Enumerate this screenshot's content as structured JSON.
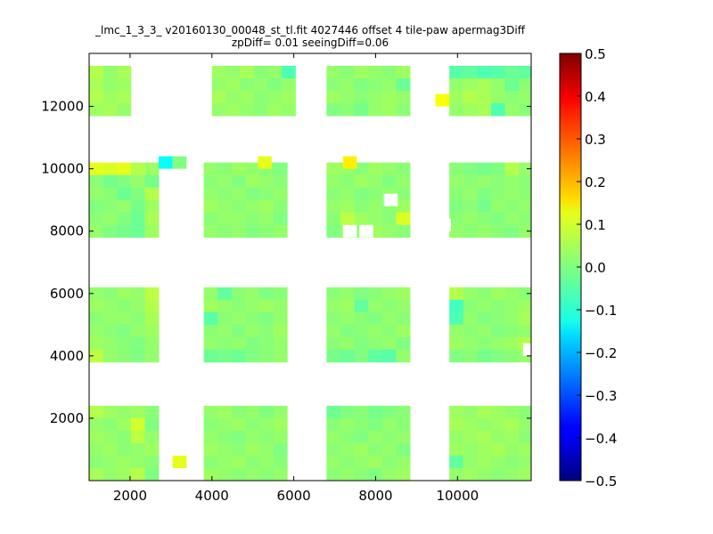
{
  "chart_data": {
    "type": "heatmap",
    "title": "_lmc_1_3_3_ v20160130_00048_st_tl.fit 4027446 offset 4 tile-paw apermag3Diff",
    "subtitle": "zpDiff= 0.01 seeingDiff=0.06",
    "xlabel": "",
    "ylabel": "",
    "xlim": [
      1000,
      11800
    ],
    "ylim": [
      0,
      13700
    ],
    "x_ticks": [
      {
        "value": 2000,
        "label": "2000"
      },
      {
        "value": 4000,
        "label": "4000"
      },
      {
        "value": 6000,
        "label": "6000"
      },
      {
        "value": 8000,
        "label": "8000"
      },
      {
        "value": 10000,
        "label": "10000"
      }
    ],
    "y_ticks": [
      {
        "value": 2000,
        "label": "2000"
      },
      {
        "value": 4000,
        "label": "4000"
      },
      {
        "value": 6000,
        "label": "6000"
      },
      {
        "value": 8000,
        "label": "8000"
      },
      {
        "value": 10000,
        "label": "10000"
      },
      {
        "value": 12000,
        "label": "12000"
      }
    ],
    "colorbar": {
      "colormap": "jet",
      "range": [
        -0.5,
        0.5
      ],
      "ticks": [
        "0.5",
        "0.4",
        "0.3",
        "0.2",
        "0.1",
        "0.0",
        "−0.1",
        "−0.2",
        "−0.3",
        "−0.4",
        "−0.5"
      ]
    },
    "cell_size": [
      340,
      400
    ],
    "detectors": [
      {
        "x0": 1000,
        "y0": 11700,
        "cols": 3,
        "rows": 4,
        "values": [
          [
            0.05,
            0.02,
            0.04
          ],
          [
            0.04,
            0.02,
            0.03
          ],
          [
            0.05,
            0.03,
            0.04
          ],
          [
            0.03,
            0.04,
            0.02
          ]
        ]
      },
      {
        "x0": 4000,
        "y0": 11700,
        "cols": 6,
        "rows": 4,
        "values": [
          [
            0.03,
            0.02,
            0.04,
            0.01,
            0.02,
            -0.05
          ],
          [
            0.02,
            0.03,
            0.01,
            0.02,
            0.0,
            0.02
          ],
          [
            0.04,
            0.02,
            0.03,
            0.01,
            0.02,
            0.03
          ],
          [
            0.02,
            0.03,
            0.02,
            0.01,
            0.03,
            0.02
          ]
        ]
      },
      {
        "x0": 6800,
        "y0": 11700,
        "cols": 6,
        "rows": 4,
        "values": [
          [
            0.02,
            0.01,
            0.03,
            0.02,
            0.01,
            0.03
          ],
          [
            0.01,
            0.02,
            0.0,
            0.01,
            0.02,
            -0.02
          ],
          [
            0.03,
            0.02,
            0.01,
            0.02,
            0.03,
            0.02
          ],
          [
            0.0,
            0.01,
            -0.01,
            0.02,
            0.03,
            0.01
          ]
        ]
      },
      {
        "x0": 9800,
        "y0": 11700,
        "cols": 6,
        "rows": 4,
        "values": [
          [
            -0.04,
            -0.03,
            -0.05,
            -0.04,
            -0.02,
            -0.03
          ],
          [
            0.02,
            0.03,
            0.04,
            0.02,
            -0.02,
            0.01
          ],
          [
            0.03,
            0.05,
            0.04,
            0.02,
            0.01,
            0.02
          ],
          [
            0.02,
            0.03,
            0.04,
            -0.05,
            0.02,
            0.01
          ]
        ]
      },
      {
        "x0": 1000,
        "y0": 7800,
        "cols": 5,
        "rows": 6,
        "values": [
          [
            0.1,
            0.09,
            0.1,
            0.05,
            0.03
          ],
          [
            0.01,
            -0.01,
            0.0,
            0.02,
            -0.01
          ],
          [
            0.02,
            0.01,
            -0.02,
            0.0,
            0.05
          ],
          [
            0.0,
            0.01,
            0.02,
            -0.01,
            0.03
          ],
          [
            0.01,
            0.02,
            0.0,
            -0.02,
            0.04
          ],
          [
            0.02,
            0.0,
            -0.01,
            -0.02,
            0.03
          ]
        ]
      },
      {
        "x0": 3800,
        "y0": 7800,
        "cols": 6,
        "rows": 6,
        "values": [
          [
            0.02,
            0.01,
            0.03,
            0.02,
            0.01,
            0.0
          ],
          [
            0.01,
            0.02,
            0.0,
            0.03,
            0.02,
            0.01
          ],
          [
            0.02,
            0.01,
            0.02,
            0.0,
            0.01,
            0.02
          ],
          [
            0.03,
            0.02,
            0.01,
            0.02,
            0.03,
            0.01
          ],
          [
            0.01,
            0.02,
            0.02,
            0.01,
            0.02,
            0.0
          ],
          [
            0.02,
            0.01,
            0.02,
            0.0,
            0.01,
            0.02
          ]
        ]
      },
      {
        "x0": 6800,
        "y0": 7800,
        "cols": 6,
        "rows": 6,
        "values": [
          [
            0.03,
            0.02,
            0.01,
            0.03,
            0.02,
            0.01
          ],
          [
            0.02,
            0.01,
            0.03,
            0.02,
            0.0,
            0.02
          ],
          [
            0.01,
            0.02,
            0.0,
            0.01,
            0.02,
            0.01
          ],
          [
            0.02,
            0.03,
            0.01,
            0.02,
            0.01,
            0.03
          ],
          [
            0.01,
            0.06,
            0.03,
            0.02,
            0.01,
            0.09
          ],
          [
            0.0,
            0.02,
            0.01,
            0.03,
            0.02,
            0.01
          ]
        ]
      },
      {
        "x0": 9800,
        "y0": 7800,
        "cols": 6,
        "rows": 6,
        "values": [
          [
            0.01,
            0.0,
            -0.01,
            0.0,
            0.05,
            0.02
          ],
          [
            0.02,
            0.01,
            0.02,
            0.01,
            0.02,
            0.01
          ],
          [
            0.01,
            0.02,
            0.0,
            0.01,
            0.02,
            0.01
          ],
          [
            0.0,
            0.01,
            -0.01,
            0.02,
            0.01,
            0.02
          ],
          [
            0.01,
            0.02,
            0.01,
            0.0,
            0.02,
            0.01
          ],
          [
            0.02,
            0.01,
            0.02,
            0.01,
            0.0,
            0.02
          ]
        ]
      },
      {
        "x0": 1000,
        "y0": 3800,
        "cols": 5,
        "rows": 6,
        "values": [
          [
            0.02,
            0.01,
            0.03,
            0.02,
            0.06
          ],
          [
            0.03,
            0.02,
            0.01,
            0.02,
            0.05
          ],
          [
            0.01,
            0.02,
            0.02,
            0.01,
            0.04
          ],
          [
            0.02,
            0.01,
            0.0,
            0.02,
            0.03
          ],
          [
            0.03,
            0.02,
            0.01,
            0.0,
            0.02
          ],
          [
            0.06,
            0.02,
            0.01,
            0.0,
            0.02
          ]
        ]
      },
      {
        "x0": 3800,
        "y0": 3800,
        "cols": 6,
        "rows": 6,
        "values": [
          [
            0.02,
            -0.03,
            0.01,
            0.02,
            0.0,
            0.01
          ],
          [
            0.03,
            0.02,
            0.01,
            0.02,
            0.03,
            0.02
          ],
          [
            -0.04,
            0.01,
            0.02,
            0.01,
            0.0,
            0.02
          ],
          [
            0.01,
            0.02,
            0.0,
            0.02,
            0.01,
            0.03
          ],
          [
            0.02,
            0.01,
            0.02,
            0.0,
            0.01,
            0.02
          ],
          [
            -0.02,
            -0.01,
            -0.02,
            0.0,
            0.01,
            0.02
          ]
        ]
      },
      {
        "x0": 6800,
        "y0": 3800,
        "cols": 6,
        "rows": 6,
        "values": [
          [
            0.01,
            0.02,
            0.0,
            0.01,
            0.02,
            0.03
          ],
          [
            0.02,
            0.03,
            -0.03,
            0.02,
            0.01,
            0.02
          ],
          [
            0.01,
            0.02,
            0.01,
            0.0,
            0.02,
            0.01
          ],
          [
            0.02,
            0.0,
            0.01,
            0.02,
            0.01,
            0.03
          ],
          [
            0.01,
            0.02,
            0.0,
            0.01,
            0.02,
            0.0
          ],
          [
            -0.01,
            -0.02,
            0.0,
            -0.03,
            -0.04,
            0.02
          ]
        ]
      },
      {
        "x0": 9800,
        "y0": 3800,
        "cols": 6,
        "rows": 6,
        "values": [
          [
            0.05,
            0.02,
            0.01,
            0.03,
            0.02,
            0.01
          ],
          [
            -0.06,
            0.01,
            0.02,
            0.01,
            0.02,
            0.03
          ],
          [
            -0.05,
            0.02,
            0.0,
            0.01,
            0.02,
            0.04
          ],
          [
            0.02,
            0.01,
            0.02,
            0.0,
            0.01,
            0.02
          ],
          [
            0.03,
            0.02,
            0.01,
            0.02,
            0.03,
            0.05
          ],
          [
            0.0,
            0.01,
            -0.01,
            0.0,
            0.01,
            0.02
          ]
        ]
      },
      {
        "x0": 1000,
        "y0": 0,
        "cols": 5,
        "rows": 6,
        "values": [
          [
            0.05,
            0.03,
            0.02,
            0.03,
            0.01
          ],
          [
            0.02,
            0.01,
            0.03,
            0.08,
            0.0
          ],
          [
            0.03,
            0.02,
            0.01,
            0.06,
            0.02
          ],
          [
            0.02,
            0.03,
            0.01,
            0.02,
            0.03
          ],
          [
            0.01,
            0.02,
            0.03,
            0.02,
            0.01
          ],
          [
            0.04,
            0.02,
            0.03,
            0.05,
            0.0
          ]
        ]
      },
      {
        "x0": 3800,
        "y0": 0,
        "cols": 6,
        "rows": 6,
        "values": [
          [
            0.02,
            0.03,
            0.01,
            0.02,
            0.0,
            0.02
          ],
          [
            0.01,
            0.02,
            0.03,
            0.01,
            0.02,
            0.03
          ],
          [
            0.02,
            0.01,
            0.0,
            0.02,
            0.01,
            0.02
          ],
          [
            0.03,
            0.02,
            0.01,
            0.03,
            0.02,
            0.0
          ],
          [
            0.01,
            0.02,
            0.03,
            0.01,
            0.02,
            0.01
          ],
          [
            0.03,
            0.02,
            0.01,
            0.02,
            0.01,
            0.02
          ]
        ]
      },
      {
        "x0": 6800,
        "y0": 0,
        "cols": 6,
        "rows": 6,
        "values": [
          [
            -0.02,
            0.0,
            0.01,
            -0.01,
            0.0,
            0.01
          ],
          [
            0.01,
            0.02,
            0.01,
            0.0,
            0.02,
            0.01
          ],
          [
            0.02,
            0.01,
            0.0,
            0.02,
            0.01,
            0.02
          ],
          [
            0.01,
            0.02,
            0.03,
            0.01,
            0.02,
            0.0
          ],
          [
            0.02,
            0.01,
            0.02,
            0.03,
            0.01,
            0.02
          ],
          [
            0.01,
            0.02,
            0.01,
            0.0,
            0.02,
            0.03
          ]
        ]
      },
      {
        "x0": 9800,
        "y0": 0,
        "cols": 6,
        "rows": 6,
        "values": [
          [
            0.03,
            0.02,
            0.04,
            0.03,
            0.02,
            0.01
          ],
          [
            0.04,
            0.03,
            0.02,
            0.03,
            0.04,
            0.02
          ],
          [
            0.02,
            0.03,
            0.04,
            0.02,
            0.03,
            0.01
          ],
          [
            0.03,
            0.02,
            0.03,
            0.04,
            0.02,
            0.03
          ],
          [
            -0.03,
            0.02,
            0.03,
            0.02,
            0.01,
            0.02
          ],
          [
            0.02,
            0.03,
            0.02,
            0.01,
            0.02,
            0.03
          ]
        ]
      }
    ],
    "singletons": [
      {
        "x": 2700,
        "y": 10000,
        "value": -0.12
      },
      {
        "x": 3040,
        "y": 10000,
        "value": 0.0
      },
      {
        "x": 5120,
        "y": 10000,
        "value": 0.1
      },
      {
        "x": 7200,
        "y": 10000,
        "value": 0.14
      },
      {
        "x": 9460,
        "y": 12000,
        "value": 0.12
      },
      {
        "x": 3040,
        "y": 400,
        "value": 0.1
      }
    ],
    "holes": [
      {
        "x": 8200,
        "y": 8800
      },
      {
        "x": 3200,
        "y": 8000
      },
      {
        "x": 9500,
        "y": 8000
      },
      {
        "x": 7200,
        "y": 7800
      },
      {
        "x": 7600,
        "y": 7800
      },
      {
        "x": 11600,
        "y": 4000
      },
      {
        "x": 2900,
        "y": 1600
      },
      {
        "x": 2900,
        "y": 2000
      },
      {
        "x": 6200,
        "y": 1600
      },
      {
        "x": 6200,
        "y": 2000
      }
    ]
  }
}
